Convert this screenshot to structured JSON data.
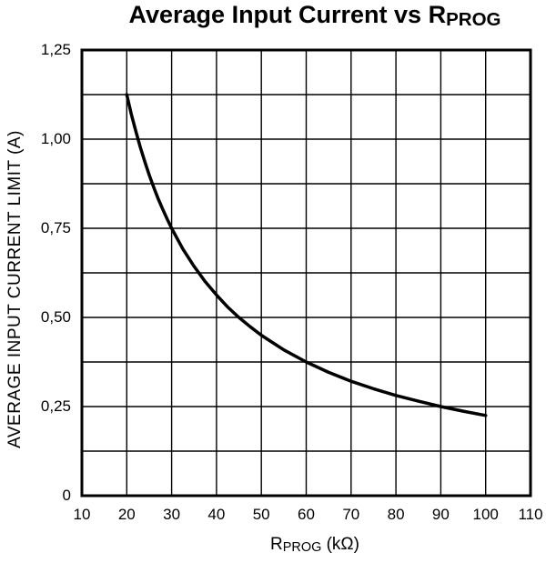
{
  "title": {
    "main": "Average Input Current vs R",
    "sub": "PROG"
  },
  "x_axis_title": {
    "main": "R",
    "sub": "PROG",
    "unit": " (kΩ)"
  },
  "colors": {
    "background": "#ffffff",
    "curve": "#000000",
    "grid": "#000000",
    "border": "#000000",
    "text": "#000000"
  },
  "chart_data": {
    "type": "line",
    "title": "Average Input Current vs RPROG",
    "xlabel": "RPROG (kΩ)",
    "ylabel": "AVERAGE INPUT CURRENT LIMIT (A)",
    "xlim": [
      10,
      110
    ],
    "ylim": [
      0,
      1.25
    ],
    "x_grid_step": 10,
    "y_grid_step": 0.125,
    "grid": true,
    "legend": false,
    "x_ticks": [
      10,
      20,
      30,
      40,
      50,
      60,
      70,
      80,
      90,
      100,
      110
    ],
    "y_ticks": [
      {
        "v": 0,
        "label": "0"
      },
      {
        "v": 0.25,
        "label": "0,25"
      },
      {
        "v": 0.5,
        "label": "0,50"
      },
      {
        "v": 0.75,
        "label": "0,75"
      },
      {
        "v": 1.0,
        "label": "1,00"
      },
      {
        "v": 1.25,
        "label": "1,25"
      }
    ],
    "series": [
      {
        "name": "average-input-current-limit",
        "relation": "I = 22.5 / RPROG",
        "x": [
          20,
          21,
          22,
          23,
          24,
          25,
          26,
          27,
          28,
          29,
          30,
          32.5,
          35,
          37.5,
          40,
          42.5,
          45,
          47.5,
          50,
          55,
          60,
          65,
          70,
          75,
          80,
          85,
          90,
          95,
          100
        ],
        "y": [
          1.125,
          1.071,
          1.023,
          0.978,
          0.938,
          0.9,
          0.865,
          0.833,
          0.804,
          0.776,
          0.75,
          0.692,
          0.643,
          0.6,
          0.563,
          0.529,
          0.5,
          0.474,
          0.45,
          0.409,
          0.375,
          0.346,
          0.321,
          0.3,
          0.281,
          0.265,
          0.25,
          0.237,
          0.225
        ]
      }
    ]
  }
}
